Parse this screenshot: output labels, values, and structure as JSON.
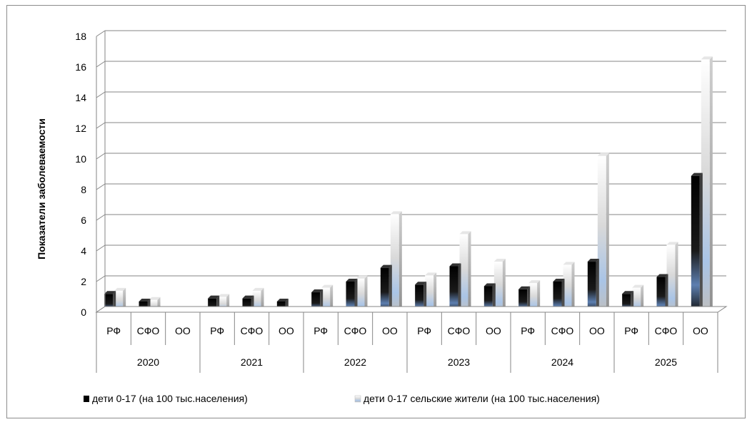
{
  "chart_data": {
    "type": "bar",
    "title": "",
    "xlabel": "",
    "ylabel": "Показатели заболеваемости",
    "ylim": [
      0,
      18
    ],
    "yticks": [
      0,
      2,
      4,
      6,
      8,
      10,
      12,
      14,
      16,
      18
    ],
    "grid": true,
    "legend_position": "bottom",
    "groups": [
      "2020",
      "2021",
      "2022",
      "2023",
      "2024",
      "2025"
    ],
    "subcategories": [
      "РФ",
      "СФО",
      "ОО"
    ],
    "categories": [
      "РФ",
      "СФО",
      "ОО",
      "РФ",
      "СФО",
      "ОО",
      "РФ",
      "СФО",
      "ОО",
      "РФ",
      "СФО",
      "ОО",
      "РФ",
      "СФО",
      "ОО",
      "РФ",
      "СФО",
      "ОО"
    ],
    "series": [
      {
        "name": "дети 0-17  (на 100 тыс.населения)",
        "color": "#000000",
        "values": [
          1.2,
          0.7,
          0.2,
          0.9,
          0.9,
          0.7,
          1.3,
          2.0,
          2.9,
          1.8,
          3.0,
          1.7,
          1.5,
          2.0,
          3.3,
          1.2,
          2.3,
          8.9
        ]
      },
      {
        "name": "дети 0-17 сельские жители (на 100 тыс.населения)",
        "color": "#f2f2f2",
        "values": [
          1.4,
          0.8,
          0.0,
          1.0,
          1.4,
          0.0,
          1.6,
          2.2,
          6.4,
          2.4,
          5.1,
          3.3,
          1.9,
          3.1,
          10.2,
          1.6,
          4.4,
          16.5
        ]
      }
    ]
  }
}
